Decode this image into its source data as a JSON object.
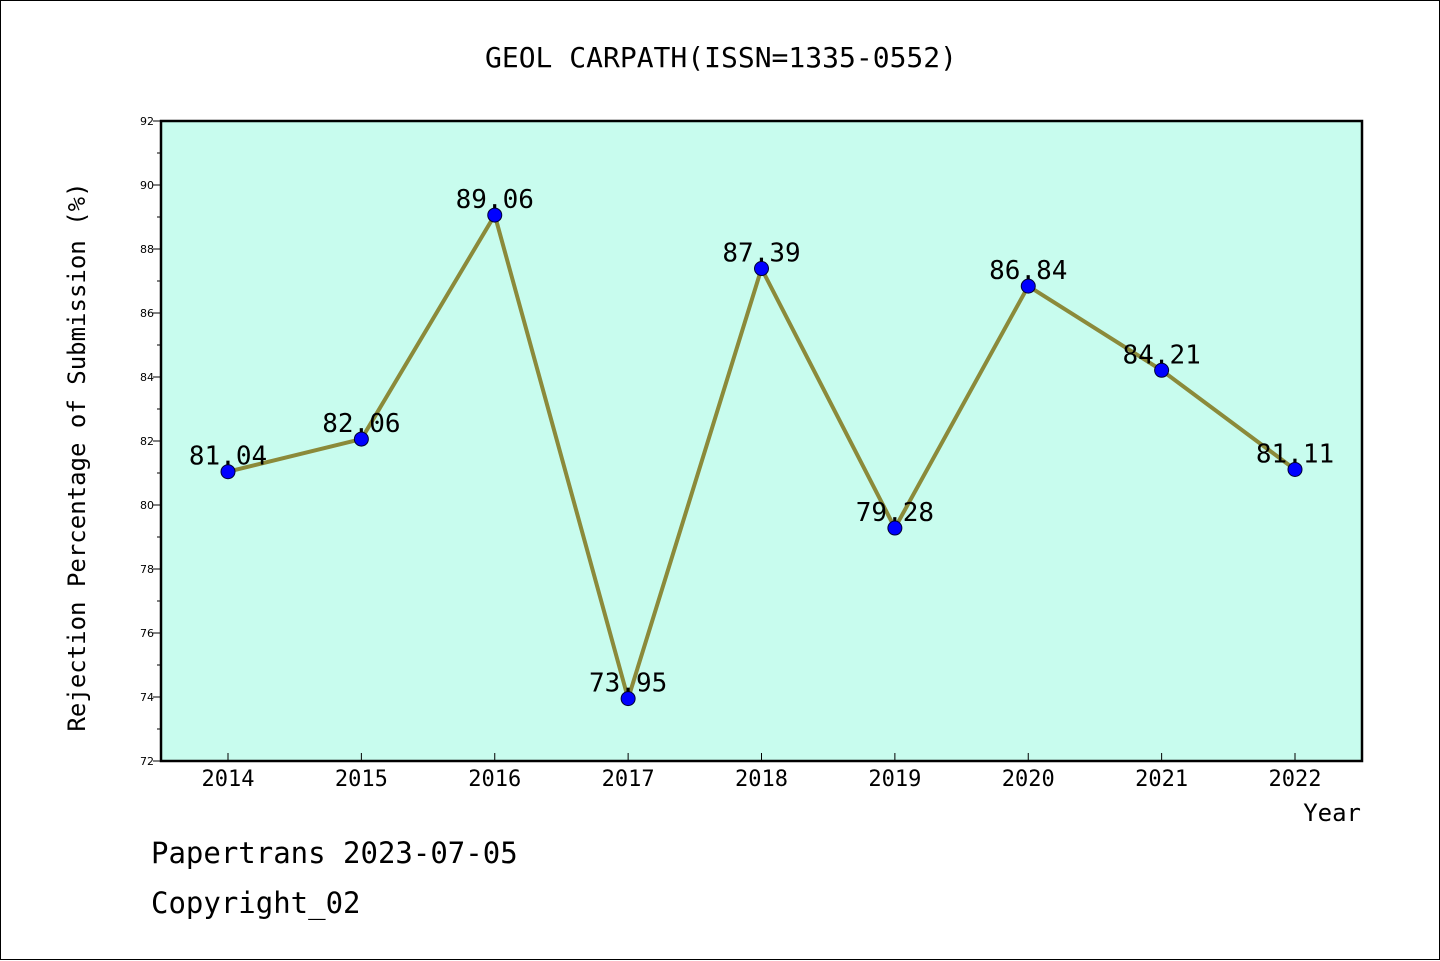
{
  "chart_data": {
    "type": "line",
    "title": "GEOL CARPATH(ISSN=1335-0552)",
    "xlabel": "Year",
    "ylabel": "Rejection Percentage of Submission (%)",
    "categories": [
      "2014",
      "2015",
      "2016",
      "2017",
      "2018",
      "2019",
      "2020",
      "2021",
      "2022"
    ],
    "values": [
      81.04,
      82.06,
      89.06,
      73.95,
      87.39,
      79.28,
      86.84,
      84.21,
      81.11
    ],
    "data_labels": [
      "81.04",
      "82.06",
      "89.06",
      "73.95",
      "87.39",
      "79.28",
      "86.84",
      "84.21",
      "81.11"
    ],
    "ylim": [
      72,
      92
    ],
    "yticks": [
      72,
      74,
      76,
      78,
      80,
      82,
      84,
      86,
      88,
      90,
      92
    ],
    "grid": false,
    "legend": "none",
    "colors": {
      "plot_background": "#c8fcee",
      "line": "#8b8a3a",
      "marker": "#0000ff"
    }
  },
  "footer": {
    "line1": "Papertrans 2023-07-05",
    "line2": "Copyright_02"
  }
}
